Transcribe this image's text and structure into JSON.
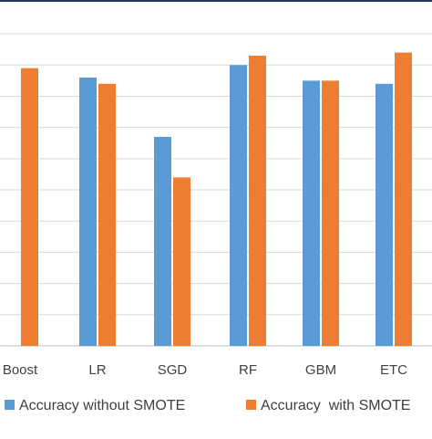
{
  "chart_data": {
    "type": "bar",
    "categories": [
      "Boost",
      "LR",
      "SGD",
      "RF",
      "GBM",
      "ETC"
    ],
    "series": [
      {
        "name": "Accuracy without SMOTE",
        "color": "#5B9BD5",
        "values": [
          null,
          0.86,
          0.67,
          0.9,
          0.85,
          0.84
        ]
      },
      {
        "name": "Accuracy  with SMOTE",
        "color": "#ED7D31",
        "values": [
          0.89,
          0.84,
          0.54,
          0.93,
          0.85,
          0.94
        ]
      }
    ],
    "ylim": [
      0,
      1.05
    ],
    "grid": true,
    "legend": "bottom"
  }
}
